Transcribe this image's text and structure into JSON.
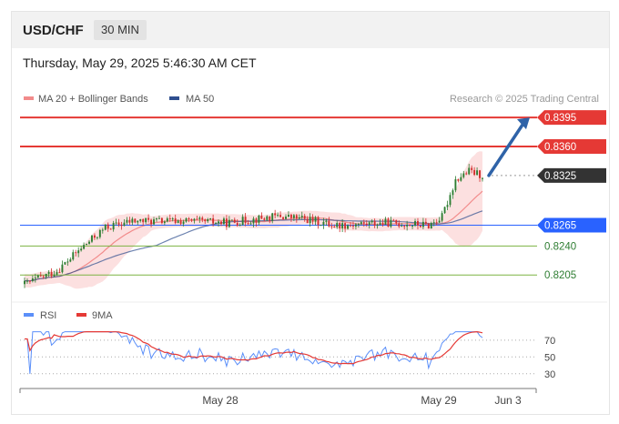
{
  "header": {
    "symbol": "USD/CHF",
    "timeframe": "30 MIN",
    "datetime": "Thursday, May 29, 2025 5:46:30 AM CET"
  },
  "colors": {
    "bull": "#2e7d32",
    "bear": "#d32f2f",
    "ma20": "#f28b8b",
    "band": "#fbd5d5",
    "ma50": "#2f4f8f",
    "resistance": "#e53935",
    "support_strong": "#2962ff",
    "support": "#7cb342",
    "arrow": "#2f63a8",
    "rsi": "#5b8ff9",
    "rsi_ma": "#e53935"
  },
  "chart_data": [
    {
      "type": "candlestick",
      "title": "",
      "legend": [
        {
          "name": "MA 20 + Bollinger Bands",
          "color": "#f28b8b"
        },
        {
          "name": "MA 50",
          "color": "#2f4f8f"
        }
      ],
      "legend_position": "top-left",
      "watermark": "Research © 2025 Trading Central",
      "x_ticks": [
        "May 28",
        "May 29",
        "Jun 3"
      ],
      "ylim": [
        0.818,
        0.8405
      ],
      "levels": [
        {
          "value": 0.8395,
          "label": "0.8395",
          "kind": "resistance"
        },
        {
          "value": 0.836,
          "label": "0.8360",
          "kind": "resistance"
        },
        {
          "value": 0.8325,
          "label": "0.8325",
          "kind": "last"
        },
        {
          "value": 0.8265,
          "label": "0.8265",
          "kind": "support_strong"
        },
        {
          "value": 0.824,
          "label": "0.8240",
          "kind": "support"
        },
        {
          "value": 0.8205,
          "label": "0.8205",
          "kind": "support"
        }
      ],
      "forecast_arrow": {
        "from": 0.8325,
        "to": 0.8395
      }
    },
    {
      "type": "line",
      "series": [
        {
          "name": "RSI",
          "color": "#5b8ff9"
        },
        {
          "name": "9MA",
          "color": "#e53935"
        }
      ],
      "ylim": [
        20,
        85
      ],
      "y_ticks": [
        70,
        50,
        30
      ],
      "last_rsi": 70
    }
  ]
}
